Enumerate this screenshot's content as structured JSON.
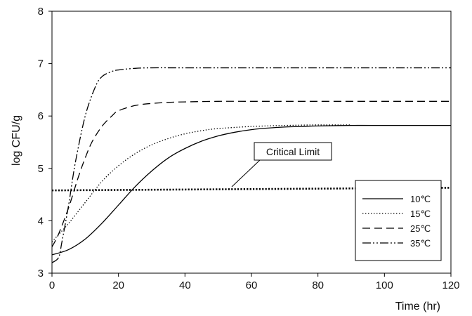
{
  "chart_data": {
    "type": "line",
    "xlabel": "Time (hr)",
    "ylabel": "log CFU/g",
    "xlim": [
      0,
      120
    ],
    "ylim": [
      3,
      8
    ],
    "x_ticks": [
      0,
      20,
      40,
      60,
      80,
      100,
      120
    ],
    "y_ticks": [
      3,
      4,
      5,
      6,
      7,
      8
    ],
    "grid": false,
    "legend_position": "bottom-right",
    "series": [
      {
        "name": "10℃",
        "line_style": "solid",
        "x": [
          0,
          5,
          10,
          15,
          20,
          25,
          30,
          35,
          40,
          45,
          50,
          55,
          60,
          65,
          70,
          75,
          80,
          90,
          100,
          120
        ],
        "y": [
          3.35,
          3.45,
          3.65,
          3.95,
          4.3,
          4.65,
          4.95,
          5.2,
          5.38,
          5.52,
          5.62,
          5.69,
          5.74,
          5.77,
          5.79,
          5.8,
          5.81,
          5.82,
          5.82,
          5.82
        ]
      },
      {
        "name": "15℃",
        "line_style": "dotted",
        "x": [
          0,
          5,
          10,
          15,
          20,
          25,
          30,
          35,
          40,
          45,
          50,
          60,
          70,
          80,
          90
        ],
        "y": [
          3.6,
          3.95,
          4.35,
          4.75,
          5.05,
          5.28,
          5.45,
          5.57,
          5.66,
          5.72,
          5.76,
          5.8,
          5.82,
          5.83,
          5.83
        ]
      },
      {
        "name": "25℃",
        "line_style": "dashed",
        "x": [
          0,
          2,
          5,
          8,
          10,
          12,
          15,
          18,
          20,
          25,
          30,
          35,
          40,
          50,
          60,
          80,
          120
        ],
        "y": [
          3.5,
          3.75,
          4.25,
          4.85,
          5.2,
          5.5,
          5.8,
          6.0,
          6.1,
          6.2,
          6.24,
          6.26,
          6.27,
          6.28,
          6.28,
          6.28,
          6.28
        ]
      },
      {
        "name": "35℃",
        "line_style": "dash-dot-dot",
        "x": [
          0,
          2,
          3,
          5,
          7,
          10,
          13,
          15,
          18,
          20,
          25,
          30,
          40,
          60,
          120
        ],
        "y": [
          3.2,
          3.3,
          3.6,
          4.3,
          5.1,
          6.0,
          6.55,
          6.75,
          6.85,
          6.88,
          6.91,
          6.92,
          6.92,
          6.92,
          6.92
        ]
      }
    ],
    "reference_line": {
      "label": "Critical Limit",
      "line_style": "heavy-dotted",
      "x": [
        0,
        120
      ],
      "y": [
        4.58,
        4.63
      ]
    }
  }
}
